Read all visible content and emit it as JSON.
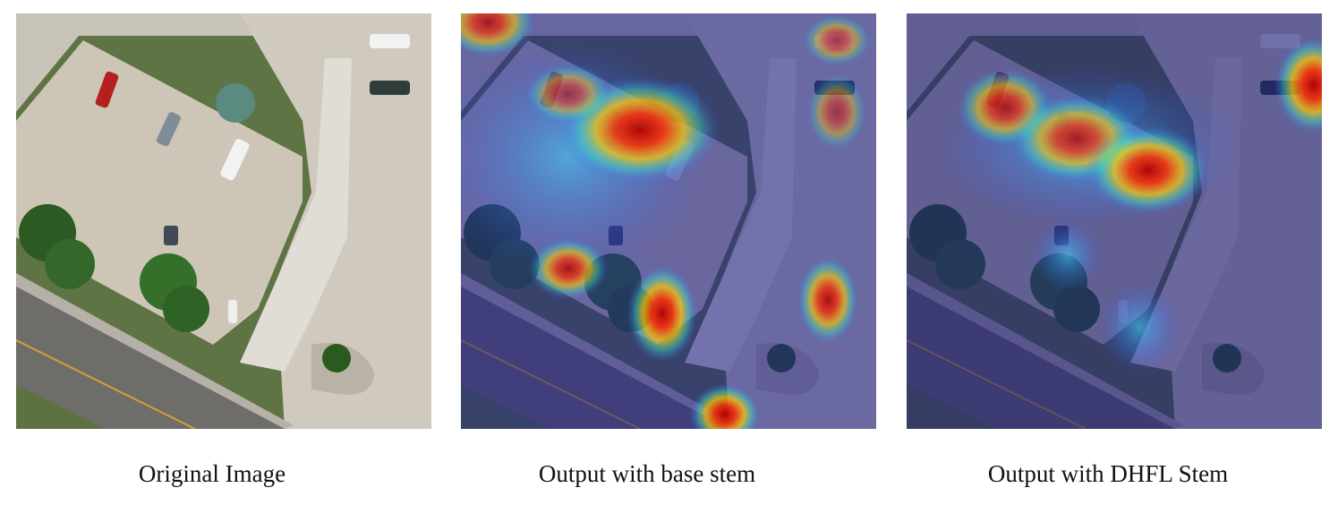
{
  "panels": [
    {
      "caption": "Original Image"
    },
    {
      "caption": "Output with base stem"
    },
    {
      "caption": "Output with DHFL Stem"
    }
  ]
}
